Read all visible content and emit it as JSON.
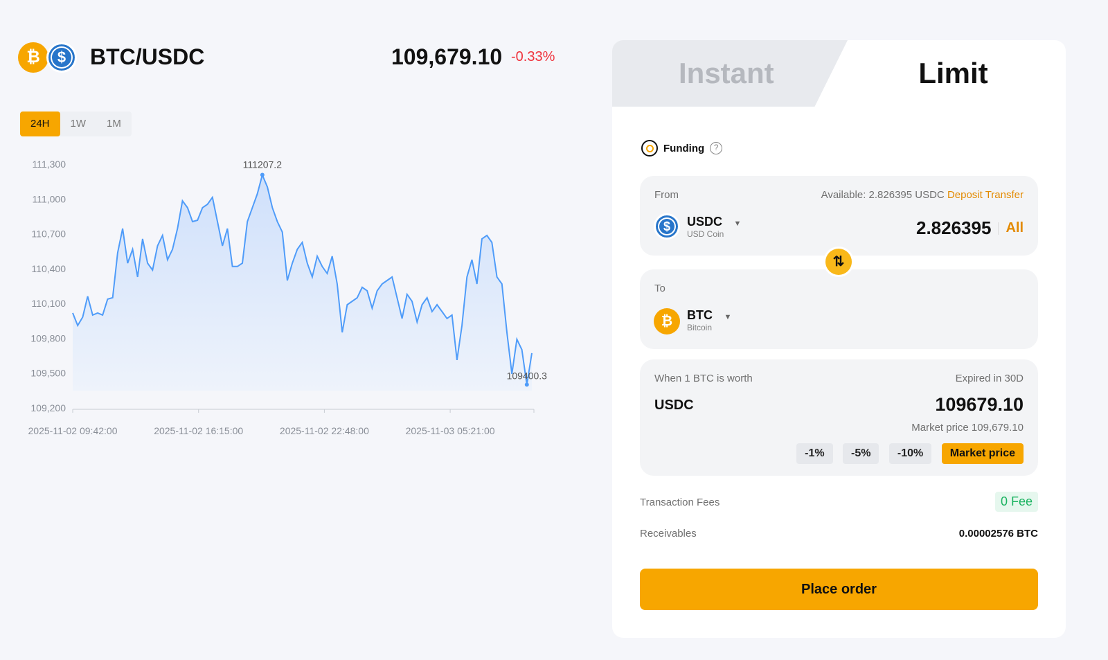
{
  "pair": {
    "title": "BTC/USDC",
    "price": "109,679.10",
    "change": "-0.33%",
    "change_color": "#f0323c",
    "base_icon": "bitcoin-icon",
    "quote_icon": "usdc-icon"
  },
  "ranges": [
    {
      "label": "24H",
      "active": true
    },
    {
      "label": "1W",
      "active": false
    },
    {
      "label": "1M",
      "active": false
    }
  ],
  "chart_data": {
    "type": "area",
    "xlabel": "",
    "ylabel": "",
    "y_ticks": [
      "111,300",
      "111,000",
      "110,700",
      "110,400",
      "110,100",
      "109,800",
      "109,500",
      "109,200"
    ],
    "y_tick_values": [
      111300,
      111000,
      110700,
      110400,
      110100,
      109800,
      109500,
      109200
    ],
    "ylim": [
      109200,
      111300
    ],
    "x_ticks": [
      "2025-11-02 09:42:00",
      "2025-11-02 16:15:00",
      "2025-11-02 22:48:00",
      "2025-11-03 05:21:00"
    ],
    "max_label": "111207.2",
    "min_label": "109400.3",
    "line_color": "#4f9cf9",
    "grid": false,
    "values": [
      110018,
      109910,
      109982,
      110161,
      110000,
      110018,
      110000,
      110137,
      110149,
      110537,
      110745,
      110447,
      110566,
      110328,
      110656,
      110447,
      110388,
      110596,
      110686,
      110477,
      110566,
      110745,
      110984,
      110925,
      110805,
      110817,
      110925,
      110954,
      111014,
      110805,
      110596,
      110745,
      110418,
      110418,
      110447,
      110805,
      110925,
      111044,
      111207.2,
      111103,
      110925,
      110805,
      110715,
      110298,
      110447,
      110566,
      110626,
      110447,
      110328,
      110507,
      110418,
      110358,
      110507,
      110268,
      109851,
      110089,
      110119,
      110149,
      110239,
      110209,
      110059,
      110209,
      110268,
      110298,
      110328,
      110149,
      109970,
      110179,
      110119,
      109940,
      110089,
      110149,
      110030,
      110089,
      110030,
      109970,
      110000,
      109612,
      109910,
      110328,
      110477,
      110268,
      110656,
      110686,
      110626,
      110328,
      110268,
      109851,
      109493,
      109791,
      109702,
      109400.3,
      109672
    ]
  },
  "order": {
    "tabs": [
      {
        "label": "Instant",
        "active": false
      },
      {
        "label": "Limit",
        "active": true
      }
    ],
    "funding_label": "Funding",
    "from": {
      "label": "From",
      "available": "Available: 2.826395 USDC",
      "deposit": "Deposit",
      "transfer": "Transfer",
      "symbol": "USDC",
      "name": "USD Coin",
      "amount": "2.826395",
      "all": "All"
    },
    "to": {
      "label": "To",
      "symbol": "BTC",
      "name": "Bitcoin"
    },
    "limit": {
      "label": "When 1 BTC is worth",
      "expiry": "Expired in 30D",
      "currency": "USDC",
      "price": "109679.10",
      "market_price": "Market price 109,679.10",
      "chips": [
        "-1%",
        "-5%",
        "-10%",
        "Market price"
      ]
    },
    "fees_label": "Transaction Fees",
    "fees_value": "0 Fee",
    "receivables_label": "Receivables",
    "receivables_value": "0.00002576 BTC",
    "place_order": "Place order",
    "accent": "#f7a600"
  }
}
